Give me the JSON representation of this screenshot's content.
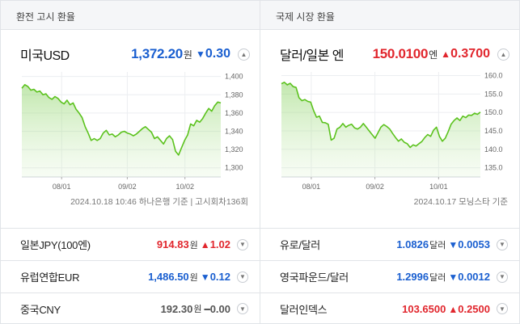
{
  "left": {
    "header": "환전 고시 환율",
    "main": {
      "name": "미국USD",
      "value": "1,372.20",
      "unit": "원",
      "arrow": "▼",
      "change": "0.30",
      "color": "#1a5fd0"
    },
    "source": "2024.10.18 10:46 하나은행 기준 | 고시회차136회",
    "chart_data": {
      "type": "area",
      "title": "",
      "x_ticks": [
        "08/01",
        "09/02",
        "10/02"
      ],
      "y_ticks": [
        1300,
        1320,
        1340,
        1360,
        1380,
        1400
      ],
      "ylim": [
        1290,
        1405
      ],
      "values": [
        1387,
        1391,
        1389,
        1385,
        1386,
        1383,
        1384,
        1380,
        1381,
        1377,
        1375,
        1378,
        1376,
        1372,
        1370,
        1374,
        1369,
        1371,
        1364,
        1360,
        1355,
        1345,
        1338,
        1330,
        1332,
        1330,
        1332,
        1338,
        1341,
        1336,
        1337,
        1334,
        1336,
        1339,
        1340,
        1338,
        1337,
        1335,
        1337,
        1340,
        1343,
        1345,
        1342,
        1339,
        1332,
        1334,
        1330,
        1326,
        1332,
        1335,
        1331,
        1318,
        1314,
        1322,
        1330,
        1336,
        1348,
        1346,
        1352,
        1350,
        1354,
        1360,
        1365,
        1362,
        1368,
        1372,
        1371
      ]
    },
    "rows": [
      {
        "name": "일본JPY(100엔)",
        "value": "914.83",
        "unit": "원",
        "arrow": "▲",
        "change": "1.02",
        "color": "#e1262d"
      },
      {
        "name": "유럽연합EUR",
        "value": "1,486.50",
        "unit": "원",
        "arrow": "▼",
        "change": "0.12",
        "color": "#1a5fd0"
      },
      {
        "name": "중국CNY",
        "value": "192.30",
        "unit": "원",
        "arrow": "━",
        "change": "0.00",
        "color": "#555555"
      }
    ]
  },
  "right": {
    "header": "국제 시장 환율",
    "main": {
      "name": "달러/일본 엔",
      "value": "150.0100",
      "unit": "엔",
      "arrow": "▲",
      "change": "0.3700",
      "color": "#e1262d"
    },
    "source": "2024.10.17 모닝스타 기준",
    "chart_data": {
      "type": "area",
      "title": "",
      "x_ticks": [
        "08/01",
        "09/02",
        "10/01"
      ],
      "y_ticks": [
        135,
        140,
        145,
        150,
        155,
        160
      ],
      "ylim": [
        132.5,
        161
      ],
      "values": [
        157.8,
        158.2,
        157.5,
        157.9,
        157,
        156.8,
        154,
        153.2,
        153.5,
        153,
        152.8,
        150.5,
        148.7,
        149,
        147.3,
        147.2,
        146.8,
        142.5,
        143,
        145.5,
        146,
        147,
        146,
        146.5,
        146.8,
        145.8,
        145.5,
        146,
        147,
        146,
        145,
        144,
        143,
        144.5,
        146,
        146.7,
        146.2,
        145.5,
        144.3,
        143.2,
        142.2,
        142.8,
        141.9,
        141.5,
        140.5,
        141.2,
        140.9,
        141.5,
        142.1,
        143.2,
        144,
        143.5,
        145.2,
        146,
        143.5,
        142.2,
        143,
        144.8,
        146.8,
        147.8,
        148.5,
        147.8,
        149,
        148.6,
        149.3,
        149.2,
        149.8,
        149.5,
        150.1
      ]
    },
    "rows": [
      {
        "name": "유로/달러",
        "value": "1.0826",
        "unit": "달러",
        "arrow": "▼",
        "change": "0.0053",
        "color": "#1a5fd0"
      },
      {
        "name": "영국파운드/달러",
        "value": "1.2996",
        "unit": "달러",
        "arrow": "▼",
        "change": "0.0012",
        "color": "#1a5fd0"
      },
      {
        "name": "달러인덱스",
        "value": "103.6500",
        "unit": "",
        "arrow": "▲",
        "change": "0.2500",
        "color": "#e1262d"
      }
    ]
  }
}
